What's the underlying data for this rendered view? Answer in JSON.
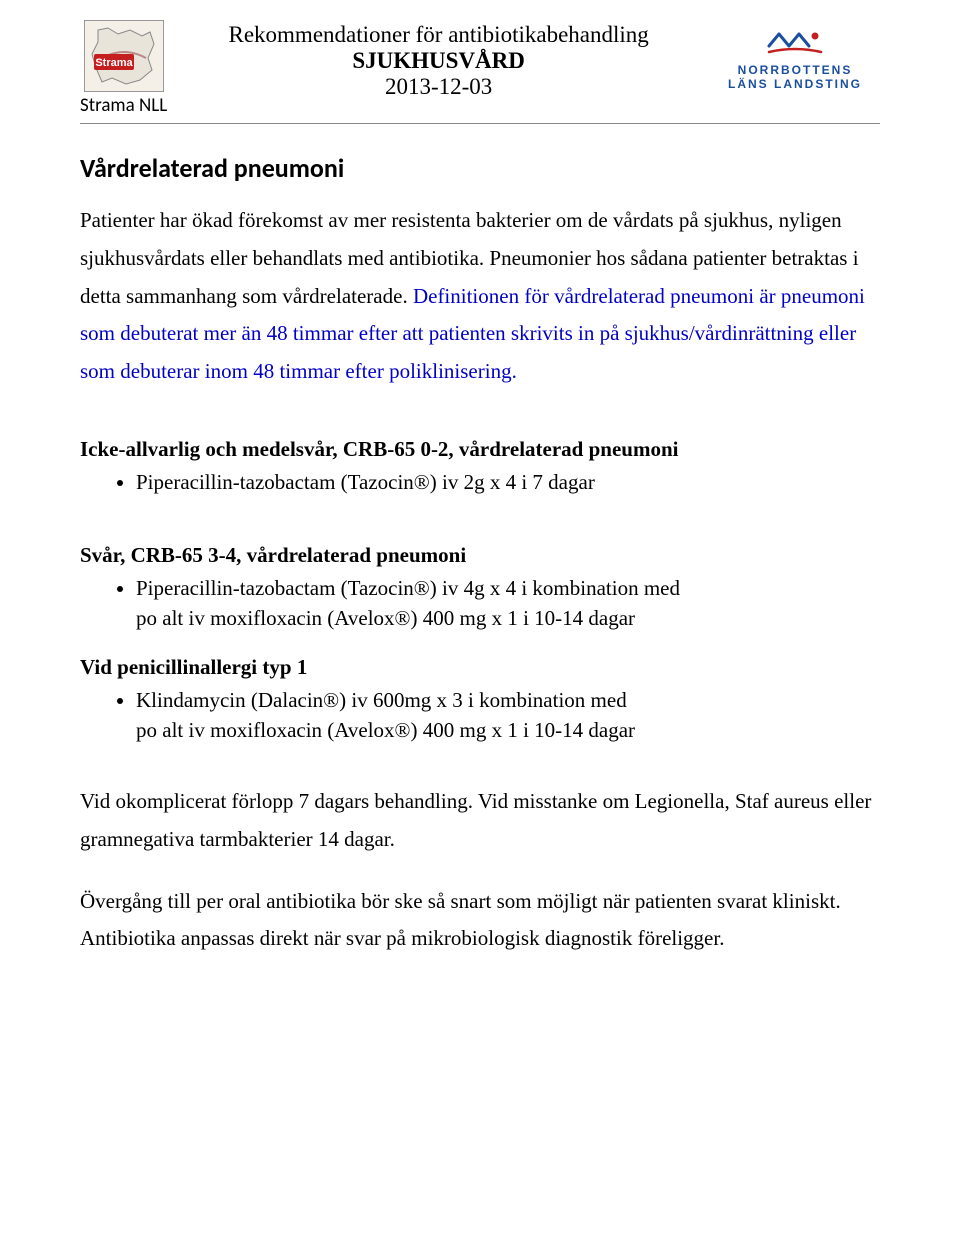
{
  "header": {
    "strama_caption": "Strama NLL",
    "center_line1": "Rekommendationer för antibiotikabehandling",
    "center_line2": "SJUKHUSVÅRD",
    "center_line3": "2013-12-03",
    "nll_line1": "NORRBOTTENS",
    "nll_line2": "LÄNS LANDSTING"
  },
  "title": "Vårdrelaterad pneumoni",
  "intro_black": "Patienter har ökad förekomst av mer resistenta bakterier om de vårdats på sjukhus, nyligen sjukhusvårdats eller behandlats med antibiotika. Pneumonier hos sådana patienter betraktas i detta sammanhang som vårdrelaterade.",
  "intro_blue": "Definitionen för vårdrelaterad pneumoni är pneumoni som debuterat mer än 48 timmar efter att patienten skrivits in på sjukhus/vårdinrättning eller som debuterar inom 48 timmar efter poliklinisering.",
  "section1": {
    "heading": "Icke-allvarlig och medelsvår, CRB-65 0-2, vårdrelaterad pneumoni",
    "items": [
      "Piperacillin-tazobactam (Tazocin®) iv 2g x 4 i 7 dagar"
    ]
  },
  "section2": {
    "heading": "Svår, CRB-65 3-4, vårdrelaterad pneumoni",
    "items": [
      "Piperacillin-tazobactam (Tazocin®) iv 4g x 4 i kombination med\npo alt iv moxifloxacin (Avelox®) 400 mg x 1 i 10-14 dagar"
    ]
  },
  "section3": {
    "heading": "Vid penicillinallergi typ 1",
    "items": [
      "Klindamycin (Dalacin®) iv 600mg x 3 i kombination med\npo alt iv moxifloxacin (Avelox®) 400 mg x 1 i 10-14 dagar"
    ]
  },
  "closing1": "Vid okomplicerat förlopp 7 dagars behandling. Vid misstanke om Legionella, Staf aureus eller gramnegativa tarmbakterier 14 dagar.",
  "closing2": "Övergång till per oral antibiotika bör ske så snart som möjligt när patienten svarat kliniskt. Antibiotika anpassas direkt när svar på mikrobiologisk diagnostik föreligger.",
  "colors": {
    "blue_text": "#0000c8",
    "nll_blue": "#1a4e9e",
    "strama_red": "#c41e1e"
  }
}
